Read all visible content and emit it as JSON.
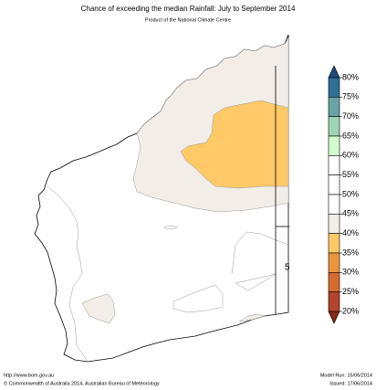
{
  "header": {
    "title": "Chance of exceeding the median Rainfall: July to September 2014",
    "subtitle": "Product of the National Climate Centre"
  },
  "map": {
    "edge_label": "5"
  },
  "legend": {
    "labels": [
      "80%",
      "75%",
      "70%",
      "65%",
      "60%",
      "55%",
      "50%",
      "45%",
      "40%",
      "35%",
      "30%",
      "25%",
      "20%"
    ],
    "colors": [
      "#2f6e96",
      "#6aa3a6",
      "#9fd3b5",
      "#d2fcd0",
      "#ffffff",
      "#ffffff",
      "#ffffff",
      "#f2ede6",
      "#fec966",
      "#e9963f",
      "#d66b2f",
      "#b3432a"
    ],
    "over_color": "#1d4e78",
    "under_color": "#8a2714"
  },
  "footer": {
    "url": "http://www.bom.gov.au",
    "copyright": "©  Commonwealth of Australia 2014, Australian Bureau of Meteorology",
    "model_run": "Model Run: 15/06/2014",
    "issued": "Issued: 17/06/2014"
  }
}
